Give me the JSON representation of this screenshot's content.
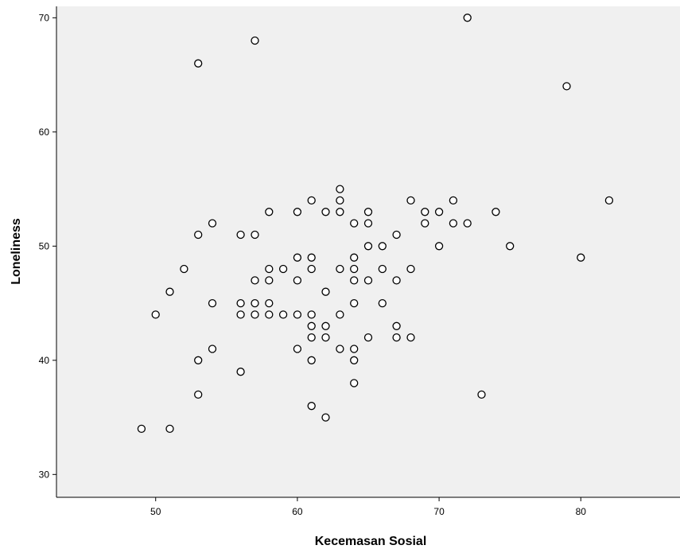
{
  "chart_data": {
    "type": "scatter",
    "xlabel": "Kecemasan Sosial",
    "ylabel": "Loneliness",
    "xlim": [
      43,
      87
    ],
    "ylim": [
      28,
      71
    ],
    "xticks": [
      50,
      60,
      70,
      80
    ],
    "yticks": [
      30,
      40,
      50,
      60,
      70
    ],
    "grid": false,
    "colors": {
      "background": "#ffffff",
      "plot_area": "#f0f0f0",
      "marker_edge": "#000000",
      "marker_face": "#ffffff"
    },
    "points": [
      [
        49,
        34
      ],
      [
        51,
        34
      ],
      [
        50,
        44
      ],
      [
        51,
        46
      ],
      [
        52,
        48
      ],
      [
        53,
        66
      ],
      [
        53,
        51
      ],
      [
        53,
        40
      ],
      [
        53,
        37
      ],
      [
        54,
        52
      ],
      [
        54,
        45
      ],
      [
        54,
        41
      ],
      [
        56,
        51
      ],
      [
        56,
        45
      ],
      [
        56,
        44
      ],
      [
        56,
        39
      ],
      [
        57,
        68
      ],
      [
        57,
        51
      ],
      [
        57,
        47
      ],
      [
        57,
        45
      ],
      [
        57,
        44
      ],
      [
        58,
        53
      ],
      [
        58,
        48
      ],
      [
        58,
        47
      ],
      [
        58,
        45
      ],
      [
        58,
        44
      ],
      [
        59,
        48
      ],
      [
        59,
        44
      ],
      [
        60,
        53
      ],
      [
        60,
        49
      ],
      [
        60,
        47
      ],
      [
        60,
        44
      ],
      [
        60,
        41
      ],
      [
        61,
        54
      ],
      [
        61,
        49
      ],
      [
        61,
        48
      ],
      [
        61,
        44
      ],
      [
        61,
        43
      ],
      [
        61,
        42
      ],
      [
        61,
        40
      ],
      [
        61,
        36
      ],
      [
        62,
        53
      ],
      [
        62,
        46
      ],
      [
        62,
        43
      ],
      [
        62,
        42
      ],
      [
        62,
        35
      ],
      [
        63,
        55
      ],
      [
        63,
        54
      ],
      [
        63,
        53
      ],
      [
        63,
        48
      ],
      [
        63,
        44
      ],
      [
        63,
        41
      ],
      [
        64,
        52
      ],
      [
        64,
        49
      ],
      [
        64,
        48
      ],
      [
        64,
        47
      ],
      [
        64,
        45
      ],
      [
        64,
        41
      ],
      [
        64,
        40
      ],
      [
        64,
        38
      ],
      [
        65,
        53
      ],
      [
        65,
        52
      ],
      [
        65,
        50
      ],
      [
        65,
        47
      ],
      [
        65,
        42
      ],
      [
        66,
        50
      ],
      [
        66,
        48
      ],
      [
        66,
        45
      ],
      [
        67,
        51
      ],
      [
        67,
        47
      ],
      [
        67,
        43
      ],
      [
        67,
        42
      ],
      [
        68,
        54
      ],
      [
        68,
        48
      ],
      [
        68,
        42
      ],
      [
        69,
        53
      ],
      [
        69,
        52
      ],
      [
        70,
        53
      ],
      [
        70,
        50
      ],
      [
        71,
        54
      ],
      [
        71,
        52
      ],
      [
        72,
        70
      ],
      [
        72,
        52
      ],
      [
        73,
        37
      ],
      [
        74,
        53
      ],
      [
        75,
        50
      ],
      [
        79,
        64
      ],
      [
        80,
        49
      ],
      [
        82,
        54
      ]
    ]
  }
}
